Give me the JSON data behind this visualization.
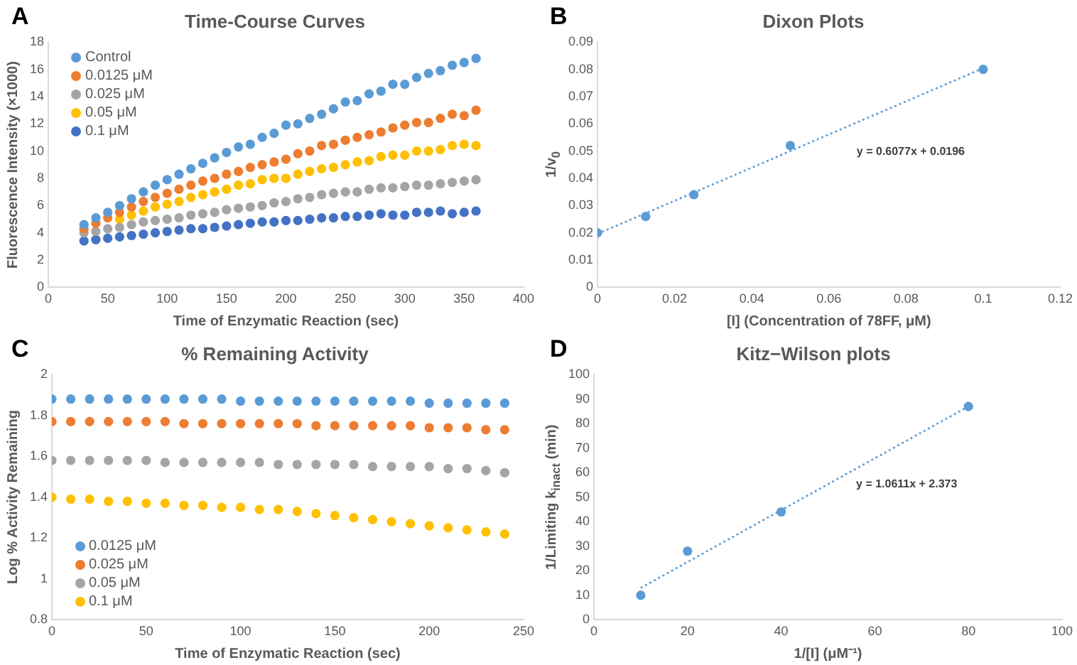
{
  "chart_data": [
    {
      "type": "scatter",
      "title": "Time-Course Curves",
      "xlabel": "Time of Enzymatic Reaction (sec)",
      "ylabel": "Fluorescence Intensity  (×1000)",
      "annotations": [
        "A"
      ],
      "x": [
        30,
        40,
        50,
        60,
        70,
        80,
        90,
        100,
        110,
        120,
        130,
        140,
        150,
        160,
        170,
        180,
        190,
        200,
        210,
        220,
        230,
        240,
        250,
        260,
        270,
        280,
        290,
        300,
        310,
        320,
        330,
        340,
        350,
        360
      ],
      "series": [
        {
          "name": "Control",
          "color": "#5b9bd5",
          "values": [
            4.6,
            5.1,
            5.5,
            6.0,
            6.5,
            7.0,
            7.5,
            7.9,
            8.3,
            8.7,
            9.1,
            9.5,
            9.9,
            10.3,
            10.5,
            11.0,
            11.3,
            11.9,
            12.0,
            12.4,
            12.7,
            13.1,
            13.6,
            13.7,
            14.2,
            14.4,
            14.9,
            14.9,
            15.4,
            15.7,
            15.9,
            16.3,
            16.5,
            16.8
          ]
        },
        {
          "name": "0.0125 μM",
          "color": "#ed7d31",
          "values": [
            4.3,
            4.7,
            5.1,
            5.5,
            5.9,
            6.3,
            6.6,
            6.9,
            7.2,
            7.5,
            7.8,
            8.0,
            8.3,
            8.5,
            8.8,
            9.0,
            9.2,
            9.4,
            9.8,
            10.0,
            10.4,
            10.5,
            10.8,
            11.0,
            11.2,
            11.4,
            11.7,
            11.9,
            12.1,
            12.1,
            12.4,
            12.7,
            12.6,
            13.0
          ]
        },
        {
          "name": "0.025 μM",
          "color": "#a5a5a5",
          "values": [
            4.0,
            4.1,
            4.3,
            4.4,
            4.6,
            4.8,
            4.9,
            5.0,
            5.1,
            5.3,
            5.4,
            5.5,
            5.7,
            5.8,
            5.9,
            6.0,
            6.2,
            6.3,
            6.5,
            6.6,
            6.8,
            6.9,
            7.0,
            7.0,
            7.2,
            7.3,
            7.3,
            7.4,
            7.5,
            7.5,
            7.6,
            7.7,
            7.8,
            7.9
          ]
        },
        {
          "name": "0.05 μM",
          "color": "#ffc000",
          "values": [
            null,
            null,
            null,
            5.0,
            5.3,
            5.6,
            5.9,
            6.1,
            6.3,
            6.6,
            6.8,
            7.0,
            7.2,
            7.5,
            7.6,
            7.9,
            8.0,
            8.0,
            8.3,
            8.5,
            8.7,
            8.8,
            9.0,
            9.2,
            9.3,
            9.6,
            9.7,
            9.7,
            10.0,
            10.0,
            10.1,
            10.4,
            10.5,
            10.4
          ]
        },
        {
          "name": "0.1 μM",
          "color": "#4472c4",
          "values": [
            3.4,
            3.5,
            3.6,
            3.7,
            3.8,
            3.9,
            4.0,
            4.1,
            4.2,
            4.3,
            4.3,
            4.4,
            4.5,
            4.6,
            4.7,
            4.8,
            4.8,
            4.9,
            4.9,
            5.0,
            5.1,
            5.1,
            5.2,
            5.2,
            5.3,
            5.4,
            5.3,
            5.3,
            5.5,
            5.5,
            5.6,
            5.4,
            5.5,
            5.6
          ]
        }
      ],
      "xlim": [
        0,
        400
      ],
      "xticks": [
        0,
        50,
        100,
        150,
        200,
        250,
        300,
        350,
        400
      ],
      "ylim": [
        0,
        18
      ],
      "yticks": [
        0,
        2,
        4,
        6,
        8,
        10,
        12,
        14,
        16,
        18
      ],
      "grid": false,
      "legend": "top left",
      "marker": "circle"
    },
    {
      "type": "scatter",
      "title": "Dixon Plots",
      "xlabel": "[I] (Concentration of 78FF, μM)",
      "ylabel": "1/v$_{0}$",
      "annotations": [
        "B",
        "y = 0.6077x + 0.0196"
      ],
      "series": [
        {
          "color": "#5b9bd5",
          "x": [
            0,
            0.0125,
            0.025,
            0.05,
            0.1
          ],
          "values": [
            0.02,
            0.026,
            0.034,
            0.052,
            0.08
          ]
        },
        {
          "type": "line",
          "color": "#5b9bd5",
          "x": [
            0,
            0.1
          ],
          "values": [
            0.0196,
            0.0804
          ],
          "line_style": "dotted",
          "marker": "none"
        }
      ],
      "xlim": [
        0,
        0.12
      ],
      "xticks": [
        0,
        0.02,
        0.04,
        0.06,
        0.08,
        0.1,
        0.12
      ],
      "ylim": [
        0,
        0.09
      ],
      "yticks": [
        0,
        0.01,
        0.02,
        0.03,
        0.04,
        0.05,
        0.06,
        0.07,
        0.08,
        0.09
      ],
      "grid": false,
      "legend": false,
      "marker": "circle"
    },
    {
      "type": "scatter",
      "title": "% Remaining Activity",
      "xlabel": "Time of Enzymatic Reaction (sec)",
      "ylabel": "Log % Activity Remaining",
      "annotations": [
        "C"
      ],
      "x": [
        0,
        10,
        20,
        30,
        40,
        50,
        60,
        70,
        80,
        90,
        100,
        110,
        120,
        130,
        140,
        150,
        160,
        170,
        180,
        190,
        200,
        210,
        220,
        230,
        240
      ],
      "series": [
        {
          "name": "0.0125 μM",
          "color": "#5b9bd5",
          "values": [
            1.88,
            1.88,
            1.88,
            1.88,
            1.88,
            1.88,
            1.88,
            1.88,
            1.88,
            1.88,
            1.87,
            1.87,
            1.87,
            1.87,
            1.87,
            1.87,
            1.87,
            1.87,
            1.87,
            1.87,
            1.86,
            1.86,
            1.86,
            1.86,
            1.86
          ]
        },
        {
          "name": "0.025 μM",
          "color": "#ed7d31",
          "values": [
            1.77,
            1.77,
            1.77,
            1.77,
            1.77,
            1.77,
            1.77,
            1.76,
            1.76,
            1.76,
            1.76,
            1.76,
            1.76,
            1.76,
            1.75,
            1.75,
            1.75,
            1.75,
            1.75,
            1.75,
            1.74,
            1.74,
            1.74,
            1.73,
            1.73
          ]
        },
        {
          "name": "0.05 μM",
          "color": "#a5a5a5",
          "values": [
            1.58,
            1.58,
            1.58,
            1.58,
            1.58,
            1.58,
            1.57,
            1.57,
            1.57,
            1.57,
            1.57,
            1.57,
            1.56,
            1.56,
            1.56,
            1.56,
            1.56,
            1.55,
            1.55,
            1.55,
            1.55,
            1.54,
            1.54,
            1.53,
            1.52
          ]
        },
        {
          "name": "0.1 μM",
          "color": "#ffc000",
          "values": [
            1.4,
            1.39,
            1.39,
            1.38,
            1.38,
            1.37,
            1.37,
            1.36,
            1.36,
            1.35,
            1.35,
            1.34,
            1.34,
            1.33,
            1.32,
            1.31,
            1.3,
            1.29,
            1.28,
            1.27,
            1.26,
            1.25,
            1.24,
            1.23,
            1.22
          ]
        }
      ],
      "xlim": [
        0,
        250
      ],
      "xticks": [
        0,
        50,
        100,
        150,
        200,
        250
      ],
      "ylim": [
        0.8,
        2
      ],
      "yticks": [
        0.8,
        1,
        1.2,
        1.4,
        1.6,
        1.8,
        2
      ],
      "grid": false,
      "legend": "bottom left",
      "marker": "circle"
    },
    {
      "type": "scatter",
      "title": "Kitz−Wilson plots",
      "xlabel": "1/[I] (μM⁻¹)",
      "ylabel": "1/Limiting k$_{inact}$ (min)",
      "annotations": [
        "D",
        "y = 1.0611x + 2.373"
      ],
      "series": [
        {
          "color": "#5b9bd5",
          "x": [
            10,
            20,
            40,
            80
          ],
          "values": [
            10,
            28,
            44,
            87
          ]
        },
        {
          "type": "line",
          "color": "#5b9bd5",
          "x": [
            10,
            80
          ],
          "values": [
            13,
            87
          ],
          "line_style": "dotted",
          "marker": "none"
        }
      ],
      "xlim": [
        0,
        100
      ],
      "xticks": [
        0,
        20,
        40,
        60,
        80,
        100
      ],
      "ylim": [
        0,
        100
      ],
      "yticks": [
        0,
        10,
        20,
        30,
        40,
        50,
        60,
        70,
        80,
        90,
        100
      ],
      "grid": false,
      "legend": false,
      "marker": "circle"
    }
  ]
}
